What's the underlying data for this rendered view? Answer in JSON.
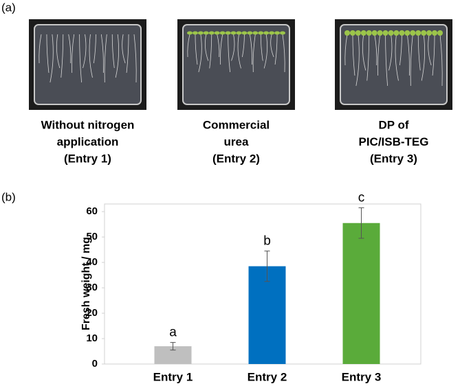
{
  "panels": [
    "(a)",
    "(b)"
  ],
  "photos": [
    {
      "caption": [
        "Without nitrogen",
        "application",
        "(Entry 1)"
      ]
    },
    {
      "caption": [
        "Commercial",
        "urea",
        "(Entry 2)"
      ]
    },
    {
      "caption": [
        "DP of",
        "PIC/ISB-TEG",
        "(Entry 3)"
      ]
    }
  ],
  "chart_data": {
    "type": "bar",
    "y_label": "Fresh weight / mg",
    "categories": [
      "Entry 1",
      "Entry 2",
      "Entry 3"
    ],
    "values": [
      7,
      38.5,
      55.5
    ],
    "errors": [
      1.5,
      6,
      6
    ],
    "annotations": [
      "a",
      "b",
      "c"
    ],
    "colors": [
      "#bfbfbf",
      "#0070c0",
      "#5aab3a"
    ],
    "ylim": [
      0,
      63
    ],
    "yticks": [
      0,
      10,
      20,
      30,
      40,
      50,
      60
    ],
    "grid": false
  }
}
